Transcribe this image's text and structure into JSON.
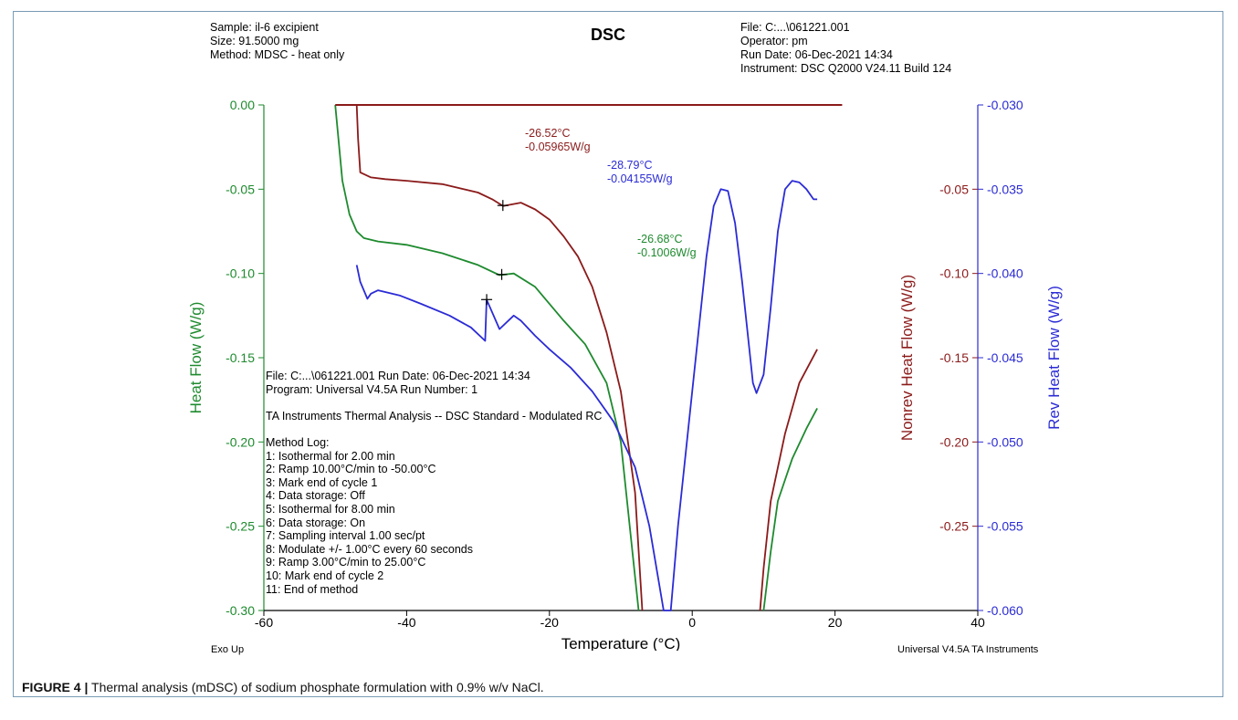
{
  "header": {
    "left": [
      "Sample: il-6 excipient",
      "Size:  91.5000 mg",
      "Method: MDSC - heat only"
    ],
    "title": "DSC",
    "right": [
      "File: C:...\\061221.001",
      "Operator: pm",
      "Run Date: 06-Dec-2021 14:34",
      "Instrument: DSC Q2000 V24.11 Build 124"
    ]
  },
  "info_block": {
    "lines": [
      "File:  C:...\\061221.001    Run Date: 06-Dec-2021 14:34",
      "Program:  Universal V4.5A    Run Number:  1",
      "",
      "TA Instruments Thermal Analysis  --  DSC Standard - Modulated RC",
      "",
      "Method Log:",
      "1: Isothermal for 2.00 min",
      "2: Ramp 10.00°C/min to -50.00°C",
      "3: Mark end of cycle 1",
      "4: Data storage: Off",
      "5: Isothermal for 8.00 min",
      "6: Data storage: On",
      "7: Sampling interval 1.00 sec/pt",
      "8: Modulate +/- 1.00°C every 60 seconds",
      "9: Ramp 3.00°C/min to 25.00°C",
      "10: Mark end of cycle 2",
      "11: End of method"
    ]
  },
  "footer": {
    "left": "Exo Up",
    "right": "Universal V4.5A TA Instruments"
  },
  "caption": {
    "label": "FIGURE 4 |",
    "text": " Thermal analysis (mDSC) of sodium phosphate formulation with 0.9% w/v NaCl."
  },
  "colors": {
    "green": "#1e8a2e",
    "red": "#8b1a1a",
    "blue": "#2b2bd6",
    "axis": "#000000"
  },
  "chart_data": {
    "type": "line",
    "xlabel": "Temperature (°C)",
    "xlim": [
      -60,
      40
    ],
    "xticks": [
      "-60",
      "-40",
      "-20",
      "0",
      "20",
      "40"
    ],
    "y_left": {
      "label": "Heat Flow (W/g)",
      "lim": [
        -0.3,
        0.0
      ],
      "ticks": [
        "0.00",
        "-0.05",
        "-0.10",
        "-0.15",
        "-0.20",
        "-0.25",
        "-0.30"
      ]
    },
    "y_right_inner": {
      "label": "Nonrev Heat Flow (W/g)",
      "lim": [
        -0.3,
        0.0
      ],
      "ticks": [
        "-0.05",
        "-0.10",
        "-0.15",
        "-0.20",
        "-0.25"
      ]
    },
    "y_right_outer": {
      "label": "Rev Heat Flow (W/g)",
      "lim": [
        -0.06,
        -0.03
      ],
      "ticks": [
        "-0.030",
        "-0.035",
        "-0.040",
        "-0.045",
        "-0.050",
        "-0.055",
        "-0.060"
      ]
    },
    "series": [
      {
        "name": "Heat Flow (W/g)",
        "axis": "left",
        "color": "#1e8a2e",
        "x": [
          -50,
          -49,
          -48,
          -47,
          -46,
          -44,
          -40,
          -35,
          -30,
          -27,
          -25,
          -22,
          -20,
          -18,
          -15,
          -12,
          -10,
          -9,
          -8,
          -7.5,
          10,
          11,
          12,
          14,
          16,
          17.5
        ],
        "y": [
          0.0,
          -0.045,
          -0.065,
          -0.075,
          -0.079,
          -0.081,
          -0.083,
          -0.088,
          -0.095,
          -0.101,
          -0.1,
          -0.108,
          -0.118,
          -0.128,
          -0.142,
          -0.165,
          -0.2,
          -0.24,
          -0.28,
          -0.3,
          -0.3,
          -0.265,
          -0.235,
          -0.21,
          -0.192,
          -0.18
        ]
      },
      {
        "name": "Nonrev Heat Flow (W/g)",
        "axis": "right_inner",
        "color": "#8b1a1a",
        "x": [
          -47,
          -46.8,
          -46.5,
          -45,
          -43,
          -40,
          -35,
          -30,
          -28,
          -26.5,
          -24,
          -22,
          -20,
          -18,
          -16,
          -14,
          -12,
          -10,
          -8,
          -7,
          9.5,
          10,
          11,
          13,
          15,
          17.5
        ],
        "y": [
          0.0,
          -0.02,
          -0.04,
          -0.043,
          -0.044,
          -0.045,
          -0.047,
          -0.052,
          -0.056,
          -0.06,
          -0.058,
          -0.062,
          -0.068,
          -0.078,
          -0.09,
          -0.108,
          -0.135,
          -0.17,
          -0.23,
          -0.3,
          -0.3,
          -0.275,
          -0.235,
          -0.195,
          -0.165,
          -0.145
        ],
        "baseline": {
          "x": [
            -50,
            21
          ],
          "y": [
            0.0,
            0.0
          ]
        }
      },
      {
        "name": "Rev Heat Flow (W/g)",
        "axis": "right_outer",
        "color": "#2b2bd6",
        "x": [
          -47,
          -46.5,
          -45.5,
          -45,
          -44,
          -43,
          -41,
          -38,
          -34,
          -31,
          -29,
          -28.8,
          -27,
          -25,
          -24,
          -22,
          -20,
          -17,
          -14,
          -11,
          -8,
          -6,
          -4,
          -3,
          -2,
          0,
          2,
          3,
          4,
          5,
          6,
          7,
          8,
          8.5,
          9,
          10,
          11,
          12,
          13,
          14,
          15,
          16,
          17,
          17.5
        ],
        "y": [
          -0.0395,
          -0.0405,
          -0.0415,
          -0.0412,
          -0.041,
          -0.0411,
          -0.0413,
          -0.0418,
          -0.0425,
          -0.0432,
          -0.044,
          -0.04155,
          -0.0433,
          -0.0425,
          -0.0428,
          -0.0437,
          -0.0445,
          -0.0456,
          -0.047,
          -0.0488,
          -0.0515,
          -0.055,
          -0.06,
          -0.06,
          -0.055,
          -0.047,
          -0.039,
          -0.036,
          -0.035,
          -0.0351,
          -0.037,
          -0.0405,
          -0.0445,
          -0.0465,
          -0.0471,
          -0.046,
          -0.042,
          -0.0375,
          -0.035,
          -0.0345,
          -0.0346,
          -0.035,
          -0.0356,
          -0.0356
        ]
      }
    ],
    "annotations": [
      {
        "axis": "right_inner",
        "color": "#8b1a1a",
        "x": -26.52,
        "y": -0.05965,
        "lines": [
          "-26.52°C",
          "-0.05965W/g"
        ]
      },
      {
        "axis": "right_outer",
        "color": "#2b2bd6",
        "x": -28.79,
        "y": -0.04155,
        "lines": [
          "-28.79°C",
          "-0.04155W/g"
        ]
      },
      {
        "axis": "left",
        "color": "#1e8a2e",
        "x": -26.68,
        "y": -0.1006,
        "lines": [
          "-26.68°C",
          "-0.1006W/g"
        ]
      }
    ]
  }
}
